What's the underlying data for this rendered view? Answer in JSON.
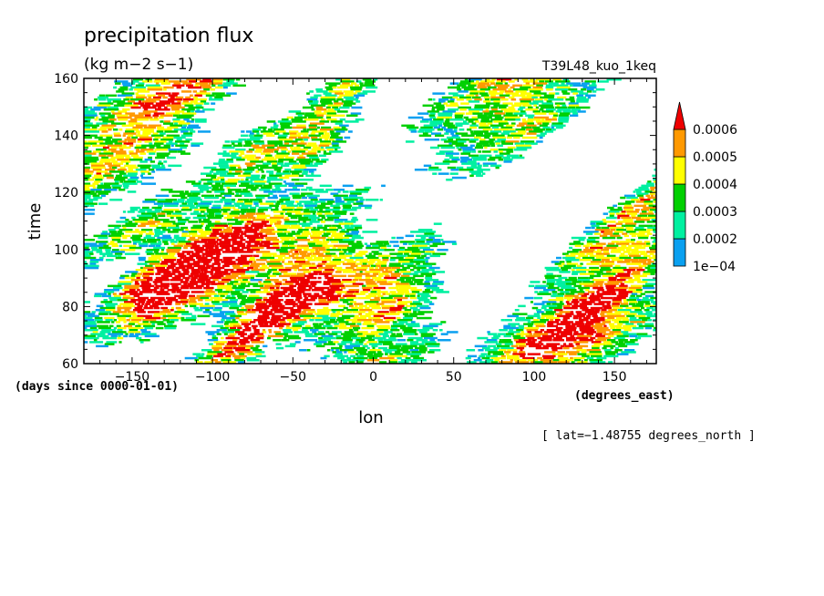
{
  "chart_data": {
    "type": "heatmap",
    "title": "precipitation flux",
    "units": "(kg m−2 s−1)",
    "experiment": "T39L48_kuo_1keq",
    "xlabel": "lon",
    "ylabel": "time",
    "x_units": "(degrees_east)",
    "y_units": "(days since 0000-01-01)",
    "footnote": "[ lat=−1.48755 degrees_north ]",
    "xlim": [
      -180,
      176
    ],
    "ylim": [
      60,
      160
    ],
    "x_ticks": [
      -150,
      -100,
      -50,
      0,
      50,
      100,
      150
    ],
    "x_tick_labels": [
      "−150",
      "−100",
      "−50",
      "0",
      "50",
      "100",
      "150"
    ],
    "y_ticks": [
      60,
      80,
      100,
      120,
      140,
      160
    ],
    "y_tick_labels": [
      "60",
      "80",
      "100",
      "120",
      "140",
      "160"
    ],
    "colorbar": {
      "levels": [
        0.0001,
        0.0002,
        0.0003,
        0.0004,
        0.0005,
        0.0006
      ],
      "labels": [
        "1e−04",
        "0.0002",
        "0.0003",
        "0.0004",
        "0.0005",
        "0.0006"
      ],
      "colors": [
        "#0aa0f0",
        "#00f0a0",
        "#00d000",
        "#ffff00",
        "#ff9900",
        "#ee0000"
      ],
      "extend": "max"
    },
    "grid": false,
    "field_note_propagation": "eastward-tilting bands of precipitation streaks"
  }
}
